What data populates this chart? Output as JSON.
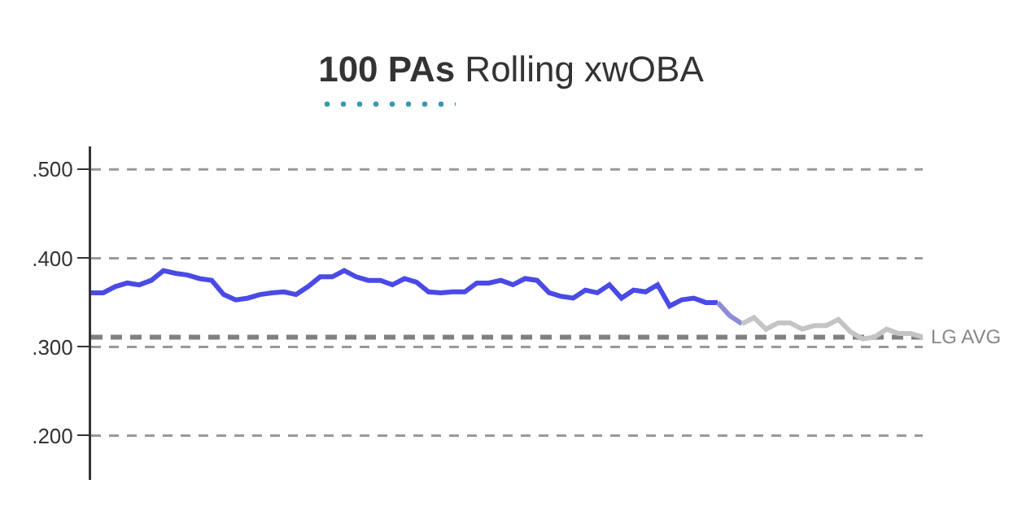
{
  "chart_data": {
    "type": "line",
    "title": "100 PAs Rolling xwOBA",
    "categories": [
      null,
      null,
      null,
      null,
      null,
      null,
      null,
      null,
      null,
      null,
      null,
      null,
      null,
      null,
      null,
      null,
      null,
      null,
      null,
      null,
      null,
      null,
      null,
      null,
      null,
      null,
      null,
      null,
      null,
      null,
      null,
      null,
      null,
      null,
      null,
      null,
      null,
      null,
      null,
      null,
      null,
      null,
      null,
      null,
      null,
      null,
      null,
      null,
      null,
      null,
      null,
      null,
      null,
      null,
      null,
      null,
      null,
      null,
      null,
      null,
      null,
      null,
      null,
      null,
      null,
      null,
      null,
      null,
      null,
      null
    ],
    "series": [
      {
        "color": "#4a4ae6",
        "values": [
          0.361,
          0.361,
          0.368,
          0.372,
          0.37,
          0.375,
          0.386,
          0.383,
          0.381,
          0.377,
          0.375,
          0.359,
          0.353,
          0.355,
          0.359,
          0.361,
          0.362,
          0.359,
          0.368,
          0.379,
          0.379,
          0.386,
          0.379,
          0.375,
          0.375,
          0.37,
          0.377,
          0.373,
          0.362,
          0.361,
          0.362,
          0.362,
          0.372,
          0.372,
          0.375,
          0.37,
          0.377,
          0.375,
          0.361,
          0.357,
          0.355,
          0.364,
          0.361,
          0.37,
          0.355,
          0.364,
          0.362,
          0.37,
          0.346,
          0.353,
          0.355,
          0.35,
          0.35,
          null,
          null,
          null,
          null,
          null,
          null,
          null,
          null,
          null,
          null,
          null,
          null,
          null,
          null,
          null,
          null,
          null
        ]
      },
      {
        "color": "#8c8cd8",
        "values": [
          null,
          null,
          null,
          null,
          null,
          null,
          null,
          null,
          null,
          null,
          null,
          null,
          null,
          null,
          null,
          null,
          null,
          null,
          null,
          null,
          null,
          null,
          null,
          null,
          null,
          null,
          null,
          null,
          null,
          null,
          null,
          null,
          null,
          null,
          null,
          null,
          null,
          null,
          null,
          null,
          null,
          null,
          null,
          null,
          null,
          null,
          null,
          null,
          null,
          null,
          null,
          null,
          0.35,
          0.335,
          0.326,
          null,
          null,
          null,
          null,
          null,
          null,
          null,
          null,
          null,
          null,
          null,
          null,
          null,
          null,
          null
        ]
      },
      {
        "color": "#c4c4c4",
        "values": [
          null,
          null,
          null,
          null,
          null,
          null,
          null,
          null,
          null,
          null,
          null,
          null,
          null,
          null,
          null,
          null,
          null,
          null,
          null,
          null,
          null,
          null,
          null,
          null,
          null,
          null,
          null,
          null,
          null,
          null,
          null,
          null,
          null,
          null,
          null,
          null,
          null,
          null,
          null,
          null,
          null,
          null,
          null,
          null,
          null,
          null,
          null,
          null,
          null,
          null,
          null,
          null,
          null,
          null,
          0.326,
          0.333,
          0.32,
          0.327,
          0.327,
          0.32,
          0.324,
          0.324,
          0.331,
          0.317,
          0.309,
          0.311,
          0.32,
          0.315,
          0.315,
          0.311
        ]
      }
    ],
    "ylim": [
      0.15,
      0.526
    ],
    "yticks": [
      {
        "value": 0.2,
        "label": ".200"
      },
      {
        "value": 0.3,
        "label": ".300"
      },
      {
        "value": 0.4,
        "label": ".400"
      },
      {
        "value": 0.5,
        "label": ".500"
      }
    ],
    "grid": "y",
    "ref_lines": [
      {
        "axis": "y",
        "value": 0.311,
        "label": "LG AVG",
        "color": "#808080",
        "line_style": "dashed"
      }
    ],
    "marker": "none",
    "line_style": "solid"
  }
}
